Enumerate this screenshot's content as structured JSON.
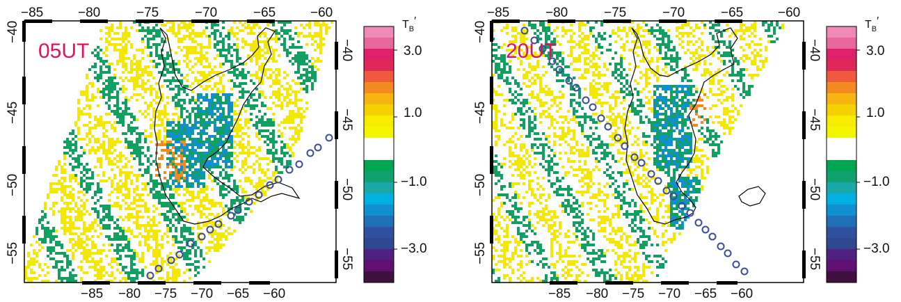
{
  "panels": [
    {
      "id": "left",
      "label": "05UT",
      "lon_ticks_top": [
        "−85",
        "−80",
        "−75",
        "−70",
        "−65",
        "−60"
      ],
      "lon_ticks_bottom": [
        "−85",
        "−80",
        "−75",
        "−70",
        "−65",
        "−60"
      ],
      "lat_ticks_left": [
        "−40",
        "−45",
        "−50",
        "−55"
      ],
      "lat_ticks_right": [
        "−40",
        "−45",
        "−50",
        "−55"
      ]
    },
    {
      "id": "right",
      "label": "20UT",
      "lon_ticks_top": [
        "−85",
        "−80",
        "−75",
        "−70",
        "−65",
        "−60"
      ],
      "lon_ticks_bottom": [
        "−85",
        "−80",
        "−75",
        "−70",
        "−65",
        "−60"
      ],
      "lat_ticks_left": [
        "−40",
        "−45",
        "−50",
        "−55"
      ],
      "lat_ticks_right": [
        "−40",
        "−45",
        "−50",
        "−55"
      ]
    }
  ],
  "colorbar": {
    "title_main": "T",
    "title_sub": "B",
    "title_prime": "′",
    "tick_labels": [
      "3.0",
      "1.0",
      "−1.0",
      "−3.0"
    ],
    "colors": [
      "#f088b8",
      "#e8689c",
      "#e0206a",
      "#e02858",
      "#f05a3c",
      "#f28a20",
      "#f5b410",
      "#f5d000",
      "#f5ec00",
      "#f5f500",
      "#ffffff",
      "#ffffff",
      "#00a651",
      "#10a070",
      "#18a8a8",
      "#00b0e0",
      "#1090d0",
      "#2070b8",
      "#3050a0",
      "#304890",
      "#502080",
      "#601070",
      "#401040"
    ]
  },
  "colors": {
    "anomaly_positive": "#f5e800",
    "anomaly_positive_strong": "#f28a20",
    "anomaly_negative": "#10a060",
    "anomaly_negative_strong": "#1090d0",
    "coastline": "#000000",
    "track_marker": "#3a4aa0",
    "label": "#e0115f"
  }
}
